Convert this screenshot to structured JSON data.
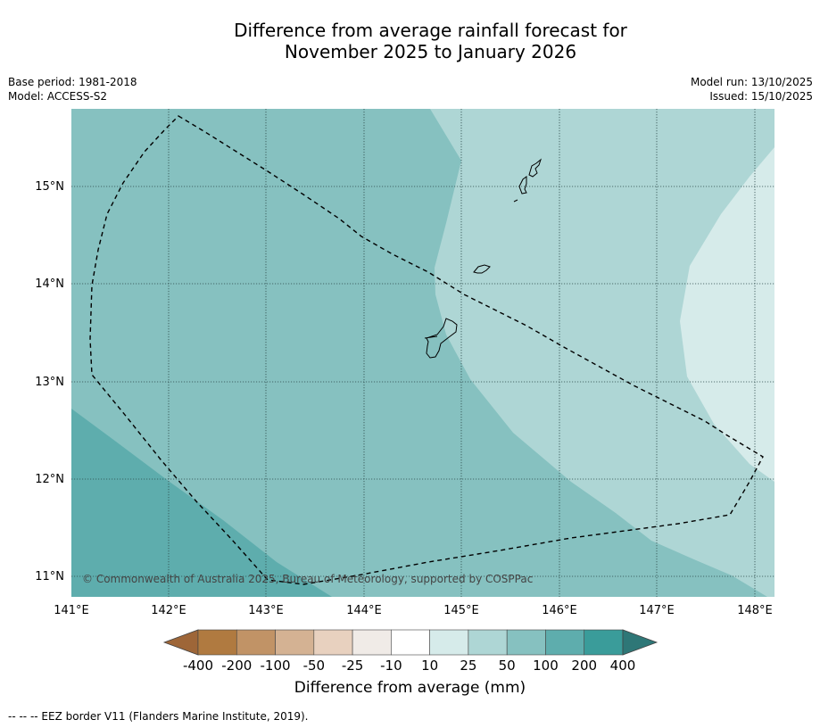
{
  "title": {
    "line1": "Difference from average rainfall forecast for",
    "line2": "November 2025 to January 2026"
  },
  "meta": {
    "base_period": "Base period: 1981-2018",
    "model": "Model: ACCESS-S2",
    "model_run": "Model run: 13/10/2025",
    "issued": "Issued: 15/10/2025"
  },
  "map": {
    "lon_ticks": [
      "141°E",
      "142°E",
      "143°E",
      "144°E",
      "145°E",
      "146°E",
      "147°E",
      "148°E"
    ],
    "lat_ticks": [
      "15°N",
      "14°N",
      "13°N",
      "12°N",
      "11°N"
    ],
    "copyright": "© Commonwealth of Australia 2025, Bureau of Meteorology, supported by COSPPac",
    "lon_range": [
      141.0,
      148.2
    ],
    "lat_range": [
      10.8,
      15.8
    ]
  },
  "colorbar": {
    "labels": [
      "-400",
      "-200",
      "-100",
      "-50",
      "-25",
      "-10",
      "10",
      "25",
      "50",
      "100",
      "200",
      "400"
    ],
    "colors": [
      "#9e6638",
      "#b07a40",
      "#c19366",
      "#d4b293",
      "#e8d1bf",
      "#f0ebe7",
      "#ffffff",
      "#d6ebea",
      "#aed6d5",
      "#86c1c0",
      "#5eadad",
      "#3a9c9a",
      "#2e7777"
    ],
    "title": "Difference from average (mm)"
  },
  "footnote": "--  --  -- EEZ border V11 (Flanders Marine Institute, 2019)."
}
